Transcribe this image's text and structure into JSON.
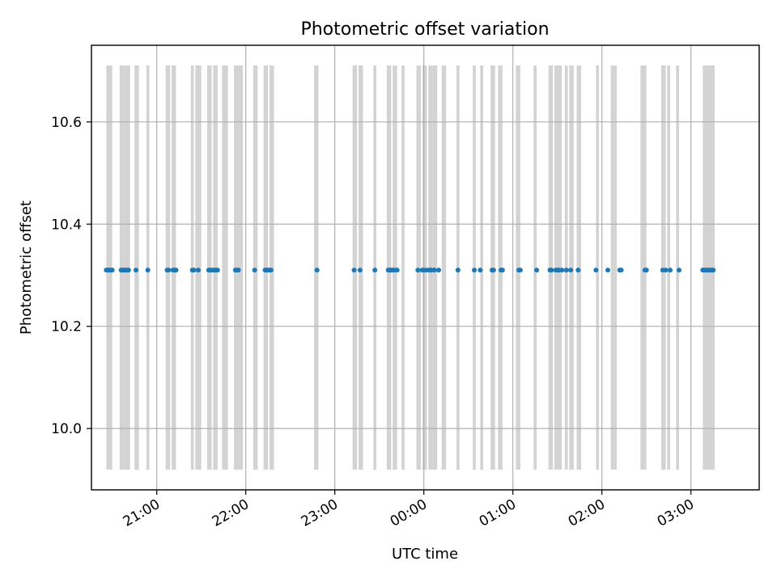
{
  "chart_data": {
    "type": "scatter",
    "title": "Photometric offset variation",
    "xlabel": "UTC time",
    "ylabel": "Photometric offset",
    "ylim": [
      9.88,
      10.75
    ],
    "y_ticks": [
      10.0,
      10.2,
      10.4,
      10.6
    ],
    "y_tick_labels": [
      "10.0",
      "10.2",
      "10.4",
      "10.6"
    ],
    "xlim": [
      "20:16",
      "03:46"
    ],
    "x_ticks": [
      "21:00",
      "22:00",
      "23:00",
      "00:00",
      "01:00",
      "02:00",
      "03:00"
    ],
    "x_tick_labels": [
      "21:00",
      "22:00",
      "23:00",
      "00:00",
      "01:00",
      "02:00",
      "03:00"
    ],
    "x_tick_rotation": "30 degrees",
    "grid": true,
    "band_color": "#d3d3d3",
    "point_color": "#1f77b4",
    "shaded_bands": [
      [
        "20:26",
        "20:30"
      ],
      [
        "20:35",
        "20:38"
      ],
      [
        "20:38",
        "20:42"
      ],
      [
        "20:45",
        "20:48"
      ],
      [
        "20:53",
        "20:55"
      ],
      [
        "21:06",
        "21:09"
      ],
      [
        "21:10",
        "21:13"
      ],
      [
        "21:23",
        "21:25"
      ],
      [
        "21:26",
        "21:30"
      ],
      [
        "21:34",
        "21:37"
      ],
      [
        "21:38",
        "21:41"
      ],
      [
        "21:44",
        "21:48"
      ],
      [
        "21:52",
        "21:55"
      ],
      [
        "21:55",
        "21:58"
      ],
      [
        "22:05",
        "22:08"
      ],
      [
        "22:12",
        "22:15"
      ],
      [
        "22:16",
        "22:19"
      ],
      [
        "22:46",
        "22:49"
      ],
      [
        "23:12",
        "23:15"
      ],
      [
        "23:16",
        "23:19"
      ],
      [
        "23:26",
        "23:28"
      ],
      [
        "23:35",
        "23:38"
      ],
      [
        "23:39",
        "23:42"
      ],
      [
        "23:45",
        "23:47"
      ],
      [
        "23:55",
        "23:58"
      ],
      [
        "23:59",
        "00:02"
      ],
      [
        "00:03",
        "00:06"
      ],
      [
        "00:06",
        "00:09"
      ],
      [
        "00:12",
        "00:15"
      ],
      [
        "00:22",
        "00:24"
      ],
      [
        "00:33",
        "00:35"
      ],
      [
        "00:38",
        "00:40"
      ],
      [
        "00:45",
        "00:48"
      ],
      [
        "00:50",
        "00:53"
      ],
      [
        "01:02",
        "01:05"
      ],
      [
        "01:14",
        "01:16"
      ],
      [
        "01:24",
        "01:27"
      ],
      [
        "01:28",
        "01:31"
      ],
      [
        "01:31",
        "01:33"
      ],
      [
        "01:35",
        "01:37"
      ],
      [
        "01:38",
        "01:41"
      ],
      [
        "01:43",
        "01:46"
      ],
      [
        "01:56",
        "01:58"
      ],
      [
        "02:06",
        "02:08"
      ],
      [
        "02:08",
        "02:10"
      ],
      [
        "02:26",
        "02:30"
      ],
      [
        "02:40",
        "02:43"
      ],
      [
        "02:44",
        "02:46"
      ],
      [
        "02:50",
        "02:52"
      ],
      [
        "03:08",
        "03:16"
      ]
    ],
    "x": [
      "20:26",
      "20:27",
      "20:28",
      "20:29",
      "20:30",
      "20:36",
      "20:37",
      "20:38",
      "20:39",
      "20:40",
      "20:41",
      "20:46",
      "20:54",
      "21:07",
      "21:08",
      "21:11",
      "21:12",
      "21:13",
      "21:24",
      "21:25",
      "21:28",
      "21:35",
      "21:36",
      "21:37",
      "21:38",
      "21:39",
      "21:40",
      "21:41",
      "21:53",
      "21:54",
      "21:55",
      "22:06",
      "22:13",
      "22:14",
      "22:15",
      "22:16",
      "22:17",
      "22:48",
      "23:13",
      "23:17",
      "23:27",
      "23:36",
      "23:37",
      "23:38",
      "23:39",
      "23:40",
      "23:42",
      "23:56",
      "23:59",
      "24:00",
      "24:02",
      "24:04",
      "24:05",
      "24:07",
      "24:10",
      "24:23",
      "24:34",
      "24:38",
      "24:46",
      "24:47",
      "24:52",
      "24:53",
      "25:04",
      "25:05",
      "25:16",
      "25:25",
      "25:26",
      "25:29",
      "25:30",
      "25:31",
      "25:33",
      "25:36",
      "25:39",
      "25:44",
      "25:56",
      "26:04",
      "26:12",
      "26:13",
      "26:29",
      "26:30",
      "26:41",
      "26:43",
      "26:46",
      "26:52",
      "27:08",
      "27:09",
      "27:10",
      "27:11",
      "27:12",
      "27:13",
      "27:14",
      "27:15"
    ],
    "y": [
      10.31,
      10.31,
      10.31,
      10.31,
      10.31,
      10.31,
      10.31,
      10.31,
      10.31,
      10.31,
      10.31,
      10.31,
      10.31,
      10.31,
      10.31,
      10.31,
      10.31,
      10.31,
      10.31,
      10.31,
      10.31,
      10.31,
      10.31,
      10.31,
      10.31,
      10.31,
      10.31,
      10.31,
      10.31,
      10.31,
      10.31,
      10.31,
      10.31,
      10.31,
      10.31,
      10.31,
      10.31,
      10.31,
      10.31,
      10.31,
      10.31,
      10.31,
      10.31,
      10.31,
      10.31,
      10.31,
      10.31,
      10.31,
      10.31,
      10.31,
      10.31,
      10.31,
      10.31,
      10.31,
      10.31,
      10.31,
      10.31,
      10.31,
      10.31,
      10.31,
      10.31,
      10.31,
      10.31,
      10.31,
      10.31,
      10.31,
      10.31,
      10.31,
      10.31,
      10.31,
      10.31,
      10.31,
      10.31,
      10.31,
      10.31,
      10.31,
      10.31,
      10.31,
      10.31,
      10.31,
      10.31,
      10.31,
      10.31,
      10.31,
      10.31,
      10.31,
      10.31,
      10.31,
      10.31,
      10.31,
      10.31,
      10.31
    ]
  }
}
